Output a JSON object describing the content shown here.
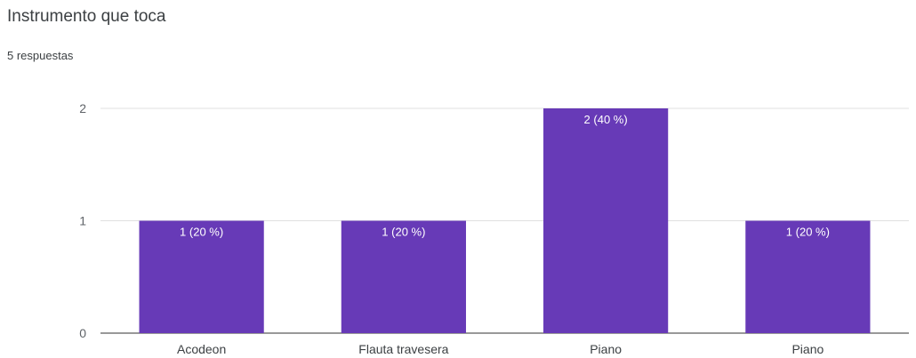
{
  "title": "Instrumento que toca",
  "subtitle": "5 respuestas",
  "chart_data": {
    "type": "bar",
    "categories": [
      "Acodeon",
      "Flauta travesera",
      "Piano",
      "Piano"
    ],
    "values": [
      1,
      1,
      2,
      1
    ],
    "data_labels": [
      "1 (20 %)",
      "1 (20 %)",
      "2 (40 %)",
      "1 (20 %)"
    ],
    "yticks": [
      0,
      1,
      2
    ],
    "ylim": [
      0,
      2
    ],
    "grid": true,
    "bar_color": "#673ab7"
  }
}
